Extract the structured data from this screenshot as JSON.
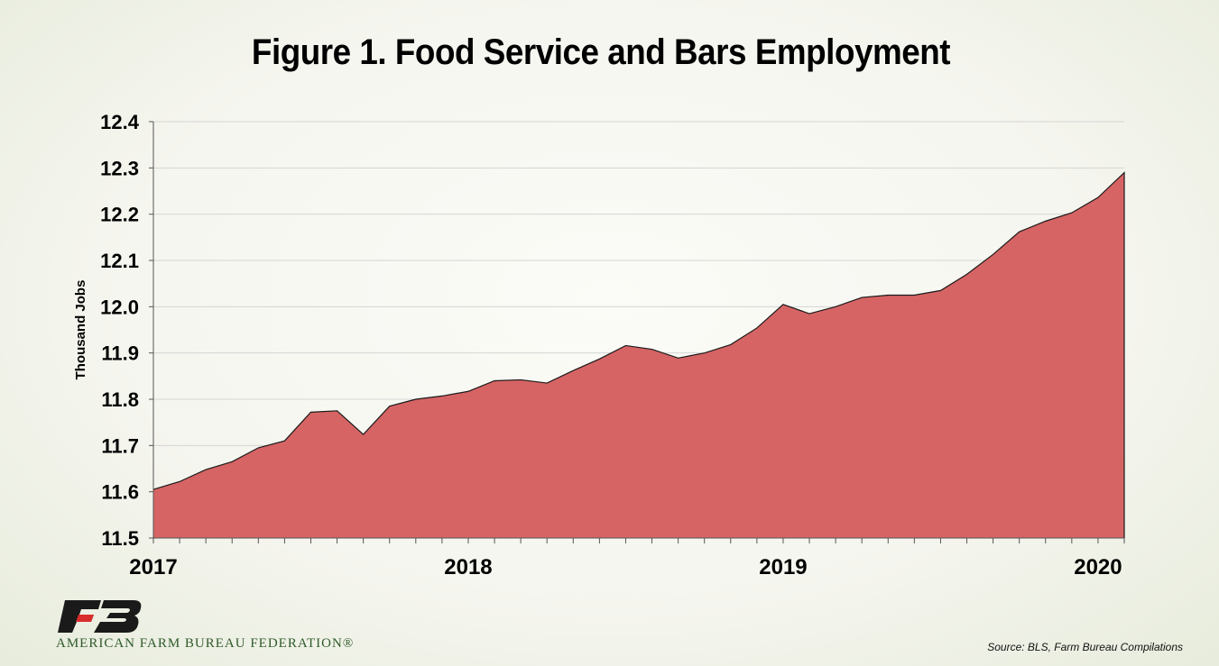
{
  "title": "Figure 1. Food Service and Bars Employment",
  "source": "Source: BLS, Farm Bureau Compilations",
  "logo": {
    "name": "American Farm Bureau Federation logo",
    "text": "AMERICAN FARM BUREAU FEDERATION®",
    "icon": "fb-monogram-icon",
    "colors": {
      "black": "#1a1a1a",
      "red": "#d92c2c",
      "green": "#2f5a2a"
    }
  },
  "chart_data": {
    "type": "area",
    "ylabel": "Thousand Jobs",
    "xlabel": "",
    "ylim": [
      11.5,
      12.4
    ],
    "yticks": [
      "11.5",
      "11.6",
      "11.7",
      "11.8",
      "11.9",
      "12.0",
      "12.1",
      "12.2",
      "12.3",
      "12.4"
    ],
    "xlim": [
      0,
      37
    ],
    "xtick_labels": [
      {
        "label": "2017",
        "x": 0
      },
      {
        "label": "2018",
        "x": 12
      },
      {
        "label": "2019",
        "x": 24
      },
      {
        "label": "2020",
        "x": 36
      }
    ],
    "grid": true,
    "fill_color": "#d66464",
    "line_color": "#1a1a1a",
    "series": [
      {
        "values": [
          11.605,
          11.622,
          11.648,
          11.665,
          11.695,
          11.71,
          11.772,
          11.775,
          11.724,
          11.785,
          11.8,
          11.807,
          11.817,
          11.84,
          11.842,
          11.835,
          11.862,
          11.887,
          11.916,
          11.908,
          11.889,
          11.9,
          11.918,
          11.954,
          12.005,
          11.985,
          12.0,
          12.02,
          12.025,
          12.025,
          12.035,
          12.07,
          12.113,
          12.162,
          12.185,
          12.203,
          12.236,
          12.29
        ]
      }
    ]
  }
}
